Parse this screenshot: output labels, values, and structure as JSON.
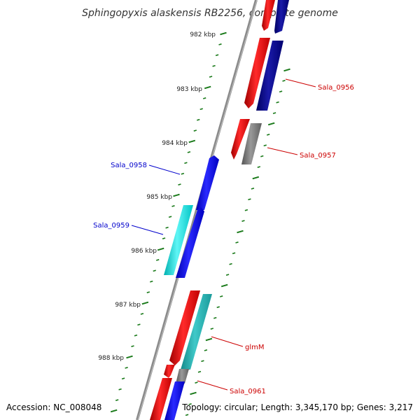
{
  "title": "Sphingopyxis alaskensis RB2256, complete genome",
  "footer": {
    "accession": "Accession: NC_008048",
    "topology": "Topology: circular; Length: 3,345,170 bp; Genes: 3,217"
  },
  "ticks": [
    {
      "label": "982 kbp"
    },
    {
      "label": "983 kbp"
    },
    {
      "label": "984 kbp"
    },
    {
      "label": "985 kbp"
    },
    {
      "label": "986 kbp"
    },
    {
      "label": "987 kbp"
    },
    {
      "label": "988 kbp"
    }
  ],
  "gene_labels": [
    {
      "text": "Sala_0956",
      "color": "#cc0000"
    },
    {
      "text": "Sala_0957",
      "color": "#cc0000"
    },
    {
      "text": "Sala_0958",
      "color": "#0000cc"
    },
    {
      "text": "Sala_0959",
      "color": "#0000cc"
    },
    {
      "text": "glmM",
      "color": "#cc0000"
    },
    {
      "text": "Sala_0961",
      "color": "#cc0000"
    }
  ],
  "colors": {
    "backbone": "#8a8a8a",
    "tick": "#1a7a1a",
    "cds_red": "#ff0000",
    "cds_navy": "#0a0a8c",
    "cds_blue": "#0000ff",
    "cds_cyan": "#00e5e5",
    "cds_teal": "#2ababa",
    "cds_gray": "#777777"
  }
}
